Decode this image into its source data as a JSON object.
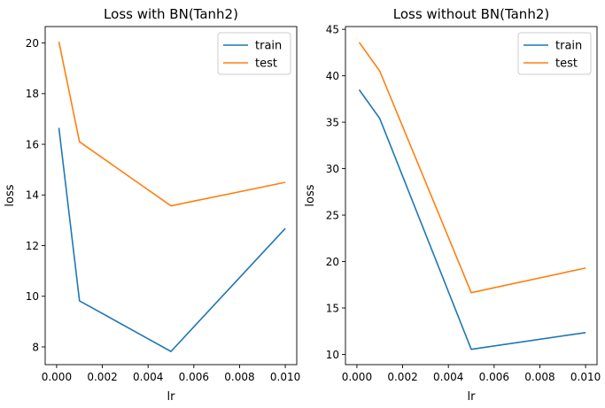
{
  "chart_data": [
    {
      "type": "line",
      "title": "Loss with BN(Tanh2)",
      "xlabel": "lr",
      "ylabel": "loss",
      "xlim": [
        -0.0005,
        0.0105
      ],
      "ylim": [
        7.3,
        20.65
      ],
      "xticks": [
        0.0,
        0.002,
        0.004,
        0.006,
        0.008,
        0.01
      ],
      "xtick_labels": [
        "0.000",
        "0.002",
        "0.004",
        "0.006",
        "0.008",
        "0.010"
      ],
      "yticks": [
        8,
        10,
        12,
        14,
        16,
        18,
        20
      ],
      "ytick_labels": [
        "8",
        "10",
        "12",
        "14",
        "16",
        "18",
        "20"
      ],
      "x": [
        0.0001,
        0.001,
        0.005,
        0.01
      ],
      "series": [
        {
          "name": "train",
          "color": "#1f77b4",
          "values": [
            16.65,
            9.82,
            7.82,
            12.68
          ]
        },
        {
          "name": "test",
          "color": "#ff7f0e",
          "values": [
            20.05,
            16.1,
            13.57,
            14.5
          ]
        }
      ],
      "legend": "top-right",
      "grid": false
    },
    {
      "type": "line",
      "title": "Loss without BN(Tanh2)",
      "xlabel": "lr",
      "ylabel": "loss",
      "xlim": [
        -0.0005,
        0.0105
      ],
      "ylim": [
        8.9,
        45.3
      ],
      "xticks": [
        0.0,
        0.002,
        0.004,
        0.006,
        0.008,
        0.01
      ],
      "xtick_labels": [
        "0.000",
        "0.002",
        "0.004",
        "0.006",
        "0.008",
        "0.010"
      ],
      "yticks": [
        10,
        15,
        20,
        25,
        30,
        35,
        40,
        45
      ],
      "ytick_labels": [
        "10",
        "15",
        "20",
        "25",
        "30",
        "35",
        "40",
        "45"
      ],
      "x": [
        0.0001,
        0.001,
        0.005,
        0.01
      ],
      "series": [
        {
          "name": "train",
          "color": "#1f77b4",
          "values": [
            38.5,
            35.4,
            10.55,
            12.35
          ]
        },
        {
          "name": "test",
          "color": "#ff7f0e",
          "values": [
            43.6,
            40.5,
            16.65,
            19.3
          ]
        }
      ],
      "legend": "top-right",
      "grid": false
    }
  ]
}
